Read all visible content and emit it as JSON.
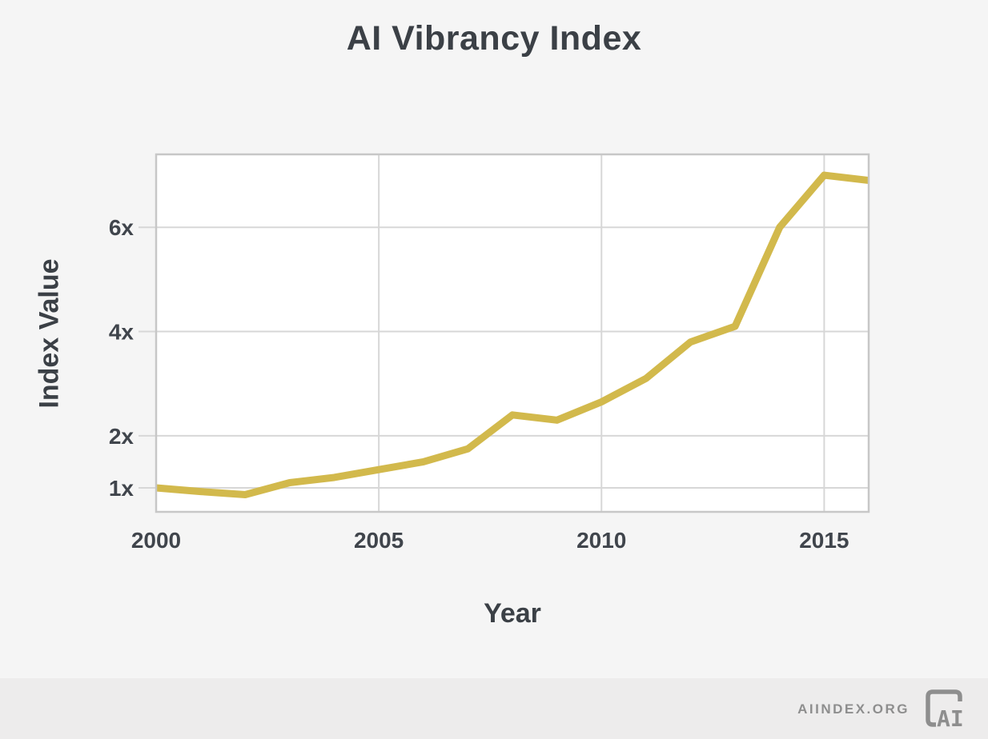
{
  "page": {
    "background": "#f5f5f5",
    "footer_background": "#edecec",
    "text_color": "#3b4046"
  },
  "chart_data": {
    "type": "line",
    "title": "AI Vibrancy Index",
    "xlabel": "Year",
    "ylabel": "Index Value",
    "x": [
      2000,
      2001,
      2002,
      2003,
      2004,
      2005,
      2006,
      2007,
      2008,
      2009,
      2010,
      2011,
      2012,
      2013,
      2014,
      2015,
      2016
    ],
    "series": [
      {
        "name": "AI Vibrancy Index",
        "values": [
          1.0,
          0.93,
          0.87,
          1.1,
          1.2,
          1.35,
          1.5,
          1.75,
          2.4,
          2.3,
          2.65,
          3.1,
          3.8,
          4.1,
          6.0,
          7.0,
          6.9
        ]
      }
    ],
    "xlim": [
      2000,
      2016
    ],
    "ylim": [
      0.54,
      7.4
    ],
    "x_ticks": [
      {
        "value": 2000,
        "label": "2000"
      },
      {
        "value": 2005,
        "label": "2005"
      },
      {
        "value": 2010,
        "label": "2010"
      },
      {
        "value": 2015,
        "label": "2015"
      }
    ],
    "y_ticks": [
      {
        "value": 1,
        "label": "1x"
      },
      {
        "value": 2,
        "label": "2x"
      },
      {
        "value": 4,
        "label": "4x"
      },
      {
        "value": 6,
        "label": "6x"
      }
    ],
    "grid": true,
    "legend": false,
    "line_color": "#d2b94c",
    "line_width": 9,
    "plot_background": "#ffffff",
    "grid_color": "#d7d7d7",
    "border_color": "#c7c7c7"
  },
  "footer": {
    "site_label": "AIINDEX.ORG",
    "logo_text": "AI",
    "logo_color": "#8e8e8e"
  }
}
